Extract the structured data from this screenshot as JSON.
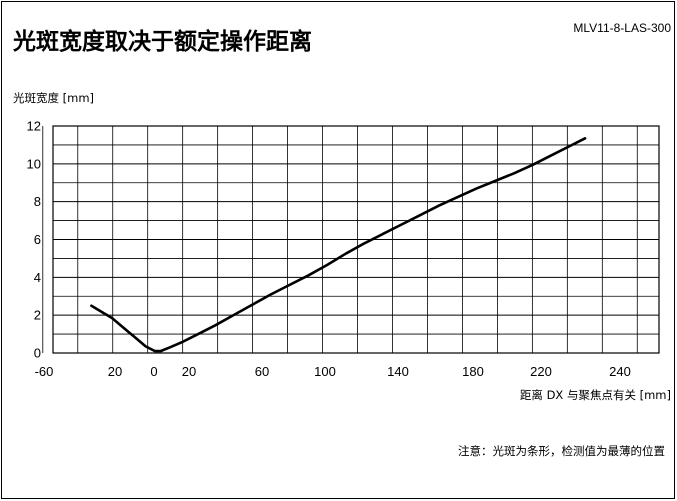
{
  "header": {
    "title": "光斑宽度取决于额定操作距离",
    "product": "MLV11-8-LAS-300"
  },
  "footer": {
    "note": "注意：光斑为条形，检测值为最薄的位置"
  },
  "chart_data": {
    "type": "line",
    "title": "光斑宽度取决于额定操作距离",
    "ylabel": "光斑宽度 [mm]",
    "xlabel": "距离 DX 与聚焦点有关 [mm]",
    "ylim": [
      0,
      12
    ],
    "grid": true,
    "y_ticks": [
      "0",
      "2",
      "4",
      "6",
      "8",
      "10",
      "12"
    ],
    "x_ticks": [
      "-60",
      "20",
      "0",
      "20",
      "60",
      "100",
      "140",
      "180",
      "220",
      "240"
    ],
    "series": [
      {
        "x": [
          -34,
          -29,
          -23,
          -17,
          -11,
          -5,
          0,
          3,
          8,
          15,
          22,
          32,
          42,
          52,
          62,
          72,
          82,
          92,
          102,
          112,
          122,
          132,
          142,
          152,
          162,
          172,
          182,
          192,
          202,
          212,
          222,
          230
        ],
        "y": [
          2.5,
          2.2,
          1.85,
          1.35,
          0.85,
          0.35,
          0.1,
          0.1,
          0.3,
          0.6,
          0.95,
          1.45,
          2.0,
          2.55,
          3.1,
          3.6,
          4.1,
          4.65,
          5.25,
          5.8,
          6.3,
          6.8,
          7.3,
          7.8,
          8.25,
          8.7,
          9.1,
          9.5,
          9.95,
          10.45,
          10.95,
          11.35
        ]
      }
    ]
  }
}
